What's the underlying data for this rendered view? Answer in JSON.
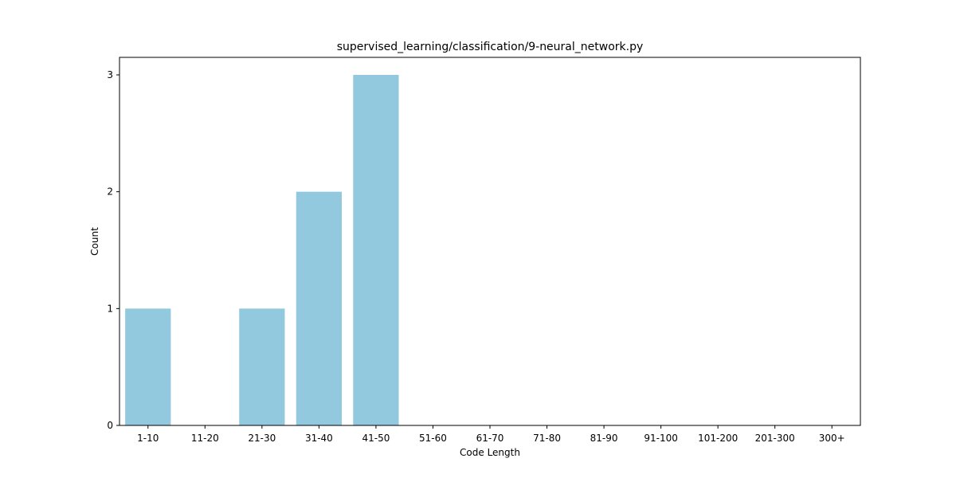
{
  "chart_data": {
    "type": "bar",
    "title": "supervised_learning/classification/9-neural_network.py",
    "xlabel": "Code Length",
    "ylabel": "Count",
    "categories": [
      "1-10",
      "11-20",
      "21-30",
      "31-40",
      "41-50",
      "51-60",
      "61-70",
      "71-80",
      "81-90",
      "91-100",
      "101-200",
      "201-300",
      "300+"
    ],
    "values": [
      1,
      0,
      1,
      2,
      3,
      0,
      0,
      0,
      0,
      0,
      0,
      0,
      0
    ],
    "yticks": [
      0,
      1,
      2,
      3
    ],
    "ylim": [
      0,
      3.15
    ],
    "grid": false,
    "bar_color": "#92c9df"
  }
}
